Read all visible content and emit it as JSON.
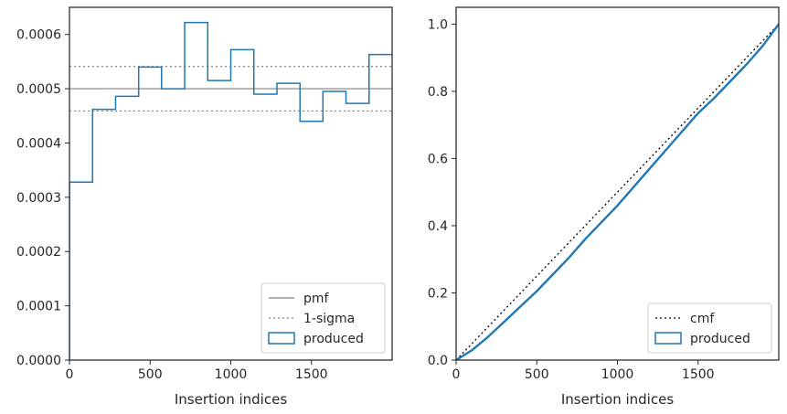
{
  "chart_data": [
    {
      "type": "histogram",
      "xlabel": "Insertion indices",
      "ylabel": "",
      "xlim": [
        0,
        2000
      ],
      "ylim": [
        0,
        0.00065
      ],
      "xticks": [
        0,
        500,
        1000,
        1500
      ],
      "xtick_labels": [
        "0",
        "500",
        "1000",
        "1500"
      ],
      "yticks": [
        0,
        0.0001,
        0.0002,
        0.0003,
        0.0004,
        0.0005,
        0.0006
      ],
      "ytick_labels": [
        "0.0000",
        "0.0001",
        "0.0002",
        "0.0003",
        "0.0004",
        "0.0005",
        "0.0006"
      ],
      "grid": false,
      "legend_position": "lower-right",
      "series": [
        {
          "name": "pmf",
          "kind": "hline",
          "y": 0.0005,
          "color": "#808080",
          "style": "solid"
        },
        {
          "name": "1-sigma",
          "kind": "hlines",
          "y": [
            0.000459,
            0.000541
          ],
          "color": "#808080",
          "style": "dotted"
        },
        {
          "name": "produced",
          "kind": "step-histogram",
          "color": "#1f77b4",
          "bin_edges": [
            0,
            143,
            286,
            429,
            571,
            714,
            857,
            1000,
            1143,
            1286,
            1429,
            1571,
            1714,
            1857,
            2000
          ],
          "values": [
            0.000328,
            0.000462,
            0.000486,
            0.00054,
            0.0005,
            0.000622,
            0.000515,
            0.000572,
            0.00049,
            0.00051,
            0.00044,
            0.000495,
            0.000473,
            0.000563
          ]
        }
      ]
    },
    {
      "type": "line",
      "xlabel": "Insertion indices",
      "ylabel": "",
      "xlim": [
        0,
        2000
      ],
      "ylim": [
        0,
        1.05
      ],
      "xticks": [
        0,
        500,
        1000,
        1500
      ],
      "xtick_labels": [
        "0",
        "500",
        "1000",
        "1500"
      ],
      "yticks": [
        0,
        0.2,
        0.4,
        0.6,
        0.8,
        1.0
      ],
      "ytick_labels": [
        "0.0",
        "0.2",
        "0.4",
        "0.6",
        "0.8",
        "1.0"
      ],
      "grid": false,
      "legend_position": "lower-right",
      "series": [
        {
          "name": "cmf",
          "kind": "line",
          "color": "#000000",
          "style": "dotted",
          "x": [
            0,
            2000
          ],
          "y": [
            0,
            1.0
          ]
        },
        {
          "name": "produced",
          "kind": "line",
          "color": "#1f77b4",
          "style": "solid",
          "x": [
            0,
            100,
            200,
            300,
            400,
            500,
            600,
            700,
            800,
            900,
            1000,
            1100,
            1200,
            1300,
            1400,
            1500,
            1600,
            1700,
            1800,
            1900,
            2000
          ],
          "y": [
            0,
            0.03,
            0.07,
            0.115,
            0.16,
            0.205,
            0.255,
            0.305,
            0.36,
            0.41,
            0.46,
            0.515,
            0.57,
            0.625,
            0.68,
            0.735,
            0.78,
            0.83,
            0.88,
            0.935,
            1.0
          ]
        }
      ]
    }
  ]
}
